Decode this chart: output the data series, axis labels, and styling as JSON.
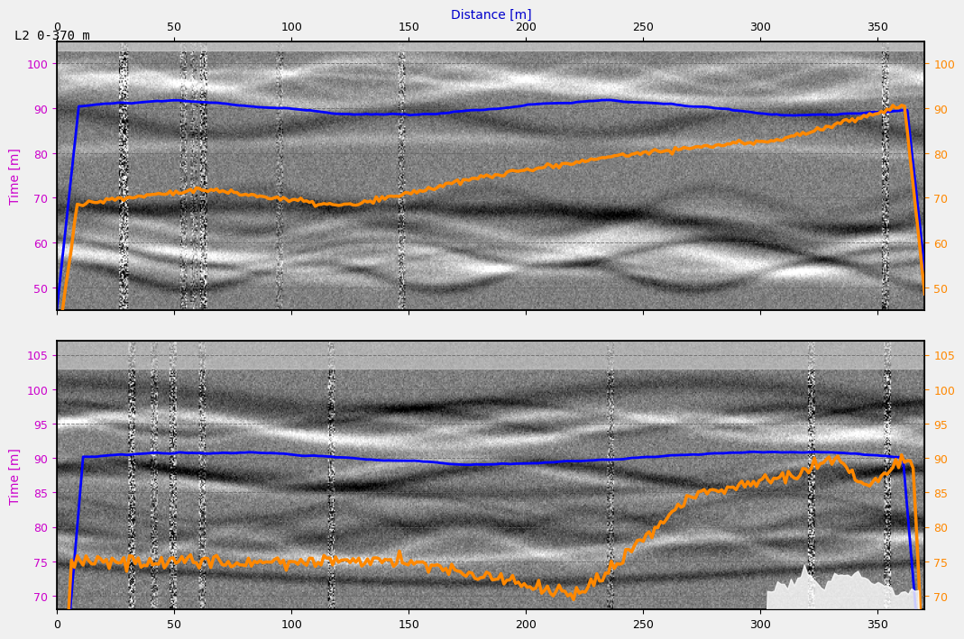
{
  "title": "L2 0-370 m",
  "xlabel": "Distance [m]",
  "ylabel": "Time [m]",
  "top_panel": {
    "xlim": [
      0,
      370
    ],
    "ylim": [
      45,
      105
    ],
    "yticks": [
      50,
      60,
      70,
      80,
      90,
      100
    ],
    "xticks": [
      0,
      50,
      100,
      150,
      200,
      250,
      300,
      350
    ],
    "bg_color": "#c8c8c8",
    "right_yticks": [
      50,
      60,
      70,
      80,
      90,
      100
    ],
    "blue_line_color": "#0000ff",
    "orange_line_color": "#ff8800"
  },
  "bottom_panel": {
    "xlim": [
      0,
      370
    ],
    "ylim": [
      68,
      107
    ],
    "yticks": [
      70,
      75,
      80,
      85,
      90,
      95,
      100,
      105
    ],
    "xticks": [
      0,
      50,
      100,
      150,
      200,
      250,
      300,
      350
    ],
    "bg_color": "#c8c8c8",
    "right_yticks": [
      70,
      75,
      80,
      85,
      90,
      95,
      100,
      105
    ],
    "blue_line_color": "#0000ff",
    "orange_line_color": "#ff8800"
  },
  "ylabel_color": "#cc00cc",
  "title_color": "#000000",
  "xlabel_color": "#0000cc",
  "right_tick_color": "#ff8800",
  "grid_color": "#666666",
  "grid_style": "--",
  "panel_bg": "#888888"
}
